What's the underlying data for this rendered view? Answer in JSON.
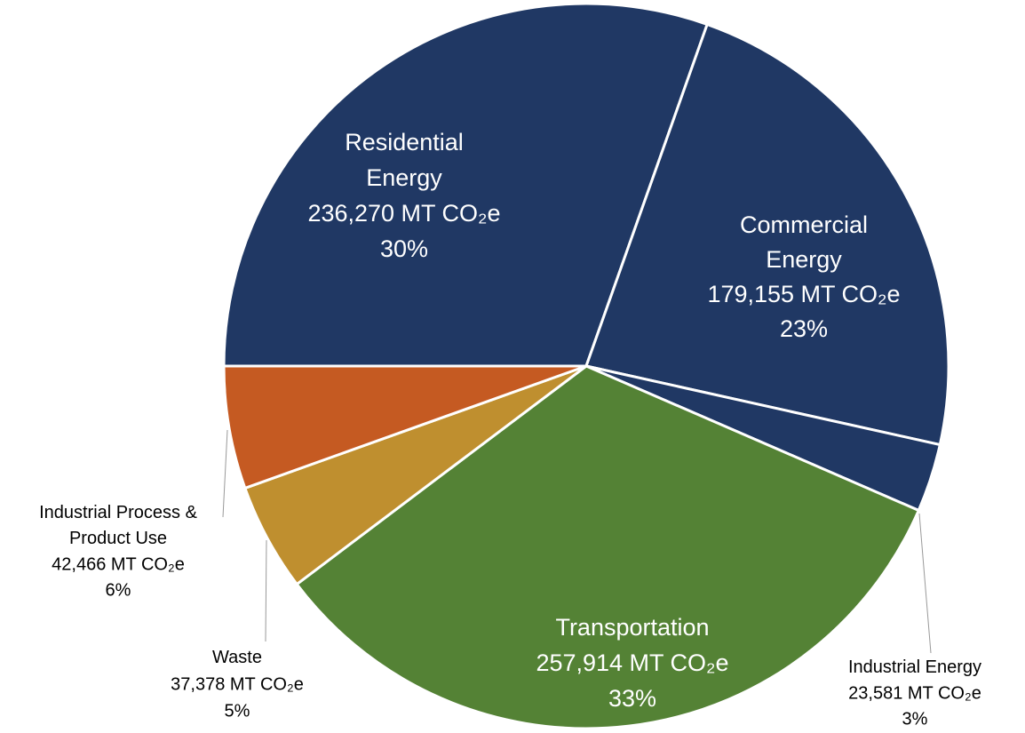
{
  "chart_data": {
    "type": "pie",
    "categories": [
      "Residential Energy",
      "Commercial Energy",
      "Industrial Energy",
      "Transportation",
      "Waste",
      "Industrial Process & Product Use"
    ],
    "values": [
      236270,
      179155,
      23581,
      257914,
      37378,
      42466
    ],
    "value_labels": [
      "236,270 MT CO₂e",
      "179,155 MT CO₂e",
      "23,581 MT CO₂e",
      "257,914 MT CO₂e",
      "37,378 MT CO₂e",
      "42,466 MT CO₂e"
    ],
    "percents": [
      30,
      23,
      3,
      33,
      5,
      6
    ],
    "percent_labels": [
      "30%",
      "23%",
      "3%",
      "33%",
      "5%",
      "6%"
    ],
    "colors": [
      "#203864",
      "#203864",
      "#203864",
      "#548235",
      "#bf8f2f",
      "#c55a22"
    ]
  }
}
